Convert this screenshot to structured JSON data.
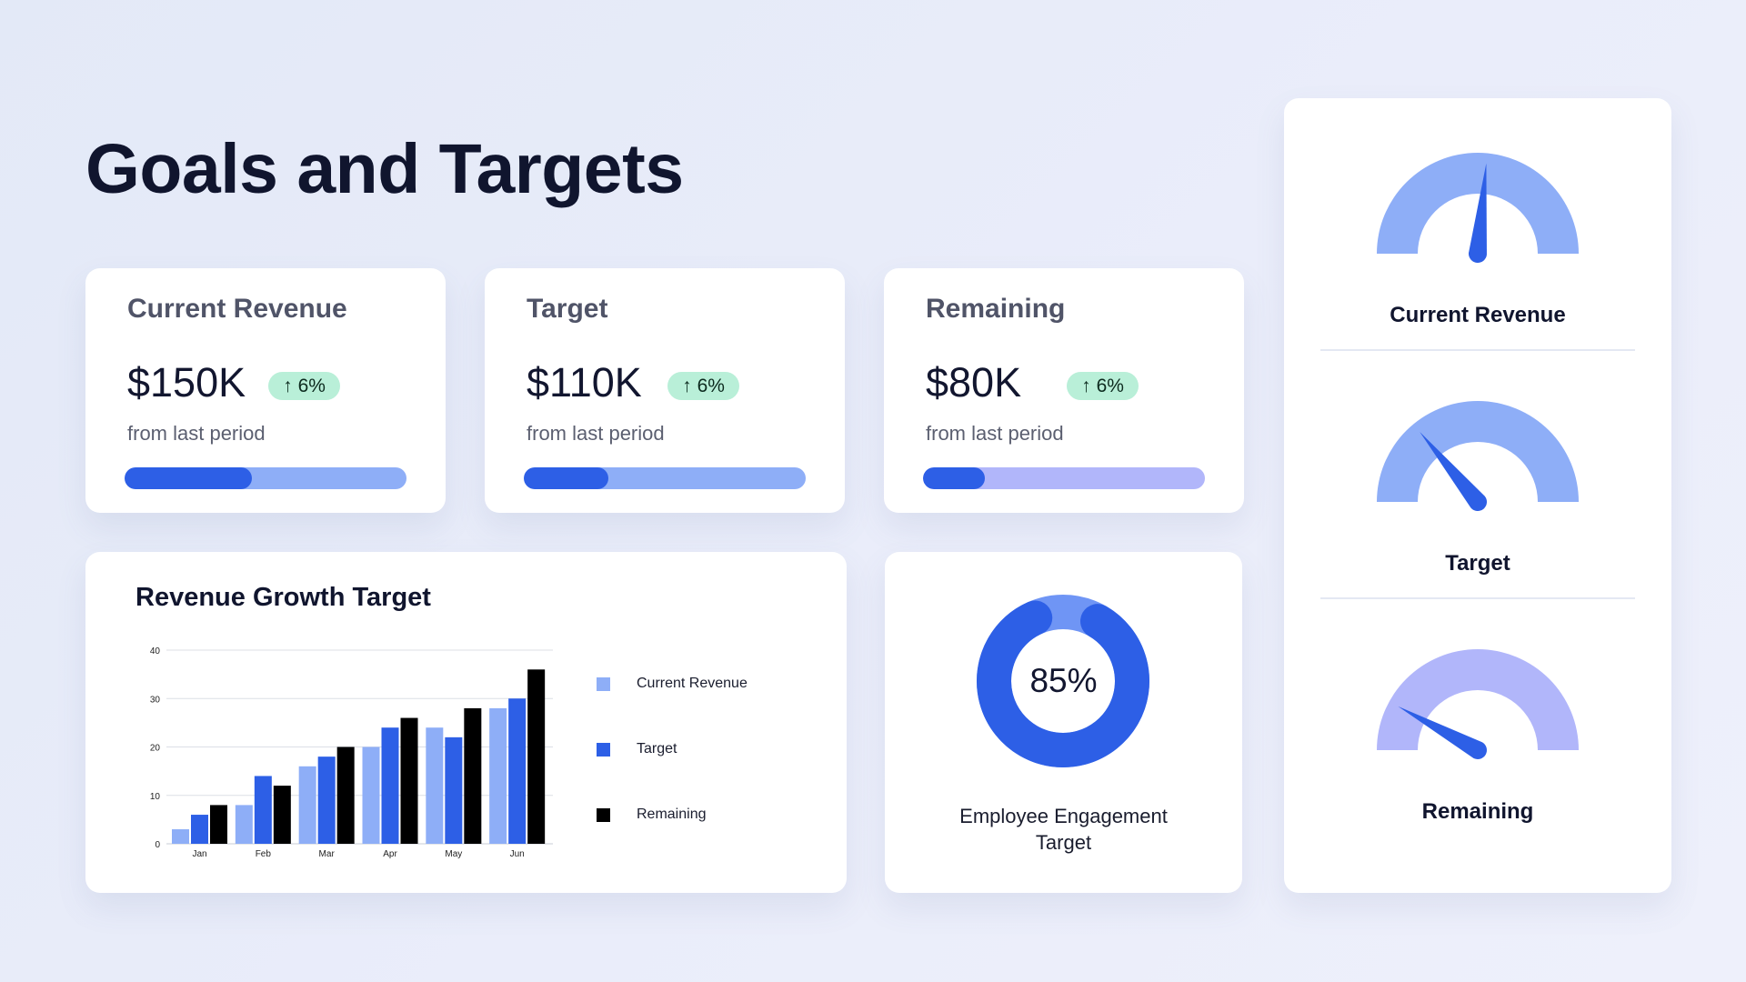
{
  "page": {
    "title": "Goals and Targets"
  },
  "kpis": [
    {
      "title": "Current Revenue",
      "value": "$150K",
      "change_arrow": "↑",
      "change": "6%",
      "subtitle": "from last period",
      "progress": 0.45,
      "track_color": "#8eaef7",
      "fill_color": "#2d5fe6"
    },
    {
      "title": "Target",
      "value": "$110K",
      "change_arrow": "↑",
      "change": "6%",
      "subtitle": "from last period",
      "progress": 0.3,
      "track_color": "#8eaef7",
      "fill_color": "#2d5fe6"
    },
    {
      "title": "Remaining",
      "value": "$80K",
      "change_arrow": "↑",
      "change": "6%",
      "subtitle": "from last period",
      "progress": 0.22,
      "track_color": "#b1b6fa",
      "fill_color": "#2d5fe6"
    }
  ],
  "revenue_chart": {
    "title": "Revenue Growth Target"
  },
  "chart_data": {
    "type": "bar",
    "title": "Revenue Growth Target",
    "categories": [
      "Jan",
      "Feb",
      "Mar",
      "Apr",
      "May",
      "Jun"
    ],
    "series": [
      {
        "name": "Current Revenue",
        "color": "#8eaef7",
        "values": [
          3,
          8,
          16,
          20,
          24,
          28
        ]
      },
      {
        "name": "Target",
        "color": "#2d5fe6",
        "values": [
          6,
          14,
          18,
          24,
          22,
          30
        ]
      },
      {
        "name": "Remaining",
        "color": "#000000",
        "values": [
          8,
          12,
          20,
          26,
          28,
          36
        ]
      }
    ],
    "ylim": [
      0,
      40
    ],
    "yticks": [
      0,
      10,
      20,
      30,
      40
    ],
    "grid": true,
    "legend": "right"
  },
  "engagement": {
    "value": "85%",
    "fraction": 0.85,
    "label": "Employee Engagement Target",
    "colors": {
      "main": "#2d5fe6",
      "rest": "#6f95f5"
    }
  },
  "gauges": [
    {
      "label": "Current Revenue",
      "level": 0.53,
      "arc_color": "#8eaef7",
      "needle_color": "#2d5fe6"
    },
    {
      "label": "Target",
      "level": 0.28,
      "arc_color": "#8eaef7",
      "needle_color": "#2d5fe6"
    },
    {
      "label": "Remaining",
      "level": 0.16,
      "arc_color": "#b1b6fa",
      "needle_color": "#2d5fe6"
    }
  ]
}
